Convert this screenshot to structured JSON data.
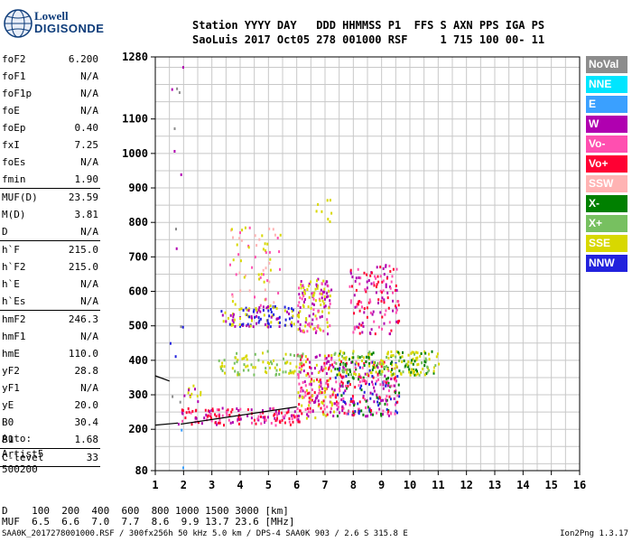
{
  "logo": {
    "line1": "Lowell",
    "line2": "DIGISONDE"
  },
  "header": {
    "labels_line": "Station YYYY DAY   DDD HHMMSS P1  FFS S AXN PPS IGA PS",
    "values_line": "SaoLuis 2017 Oct05 278 001000 RSF     1 715 100 00- 11"
  },
  "params": [
    {
      "k": "foF2",
      "v": "6.200"
    },
    {
      "k": "foF1",
      "v": "N/A"
    },
    {
      "k": "foF1p",
      "v": "N/A"
    },
    {
      "k": "foE",
      "v": "N/A"
    },
    {
      "k": "foEp",
      "v": "0.40"
    },
    {
      "k": "fxI",
      "v": "7.25"
    },
    {
      "k": "foEs",
      "v": "N/A"
    },
    {
      "k": "fmin",
      "v": "1.90"
    },
    {
      "sep": true
    },
    {
      "k": "MUF(D)",
      "v": "23.59"
    },
    {
      "k": "M(D)",
      "v": "3.81"
    },
    {
      "k": "D",
      "v": "N/A"
    },
    {
      "sep": true
    },
    {
      "k": "h`F",
      "v": "215.0"
    },
    {
      "k": "h`F2",
      "v": "215.0"
    },
    {
      "k": "h`E",
      "v": "N/A"
    },
    {
      "k": "h`Es",
      "v": "N/A"
    },
    {
      "sep": true
    },
    {
      "k": "hmF2",
      "v": "246.3"
    },
    {
      "k": "hmF1",
      "v": "N/A"
    },
    {
      "k": "hmE",
      "v": "110.0"
    },
    {
      "k": "yF2",
      "v": "28.8"
    },
    {
      "k": "yF1",
      "v": "N/A"
    },
    {
      "k": "yE",
      "v": "20.0"
    },
    {
      "k": "B0",
      "v": "30.4"
    },
    {
      "k": "B1",
      "v": "1.68"
    },
    {
      "sep": true
    },
    {
      "k": "C-level",
      "v": "33"
    },
    {
      "sep": true
    }
  ],
  "auto": {
    "l1": "Auto:",
    "l2": "Artist5",
    "l3": "500200"
  },
  "legend": [
    {
      "label": "NoVal",
      "color": "#8c8c8c"
    },
    {
      "label": "NNE",
      "color": "#00e5ff"
    },
    {
      "label": "E",
      "color": "#3aa0ff"
    },
    {
      "label": "W",
      "color": "#b000b0"
    },
    {
      "label": "Vo-",
      "color": "#ff4fb0"
    },
    {
      "label": "Vo+",
      "color": "#ff0033"
    },
    {
      "label": "SSW",
      "color": "#ffb3b3"
    },
    {
      "label": "X-",
      "color": "#008000"
    },
    {
      "label": "X+",
      "color": "#77c060"
    },
    {
      "label": "SSE",
      "color": "#d8d800"
    },
    {
      "label": "NNW",
      "color": "#2222dd"
    }
  ],
  "d_line": "D    100  200  400  600  800 1000 1500 3000 [km]",
  "muf_line": "MUF  6.5  6.6  7.0  7.7  8.6  9.9 13.7 23.6 [MHz]",
  "footer": {
    "left": "SAA0K_2017278001000.RSF / 300fx256h 50 kHz 5.0 km / DPS-4 SAA0K 903 / 2.6 S 315.8 E",
    "right": "Ion2Png 1.3.17"
  },
  "chart_data": {
    "type": "scatter",
    "title": "",
    "xlabel": "",
    "ylabel": "",
    "xlim": [
      1,
      16
    ],
    "ylim": [
      80,
      1280
    ],
    "x_ticks": [
      1,
      2,
      3,
      4,
      5,
      6,
      7,
      8,
      9,
      10,
      11,
      12,
      13,
      14,
      15,
      16
    ],
    "y_ticks": [
      80,
      200,
      300,
      400,
      500,
      600,
      700,
      800,
      900,
      1000,
      1100,
      1280
    ],
    "grid": true,
    "clusters": [
      {
        "x": [
          1.5,
          2.2
        ],
        "y": [
          85,
          95
        ],
        "density": "low",
        "colors": [
          "#2222dd",
          "#3aa0ff",
          "#00e5ff"
        ]
      },
      {
        "x": [
          1.6,
          1.9
        ],
        "y": [
          195,
          215
        ],
        "density": "low",
        "colors": [
          "#2222dd",
          "#3aa0ff"
        ]
      },
      {
        "x": [
          1.9,
          6.1
        ],
        "y": [
          215,
          265
        ],
        "density": "high",
        "colors": [
          "#ff0033",
          "#ff4fb0",
          "#b000b0",
          "#ff0033"
        ]
      },
      {
        "x": [
          6.0,
          7.3
        ],
        "y": [
          235,
          420
        ],
        "density": "high",
        "colors": [
          "#ff0033",
          "#ff4fb0",
          "#b000b0",
          "#d8d800"
        ]
      },
      {
        "x": [
          7.3,
          9.6
        ],
        "y": [
          240,
          400
        ],
        "density": "high",
        "colors": [
          "#ff4fb0",
          "#b000b0",
          "#2222dd",
          "#008000",
          "#ff0033"
        ]
      },
      {
        "x": [
          7.3,
          11.0
        ],
        "y": [
          360,
          430
        ],
        "density": "high",
        "colors": [
          "#d8d800",
          "#77c060",
          "#d8d800",
          "#008000"
        ]
      },
      {
        "x": [
          3.0,
          6.2
        ],
        "y": [
          360,
          430
        ],
        "density": "med",
        "colors": [
          "#d8d800",
          "#77c060"
        ]
      },
      {
        "x": [
          3.3,
          5.9
        ],
        "y": [
          500,
          560
        ],
        "density": "high",
        "colors": [
          "#b000b0",
          "#2222dd",
          "#d8d800"
        ]
      },
      {
        "x": [
          6.0,
          7.2
        ],
        "y": [
          480,
          640
        ],
        "density": "high",
        "colors": [
          "#b000b0",
          "#ff4fb0",
          "#d8d800"
        ]
      },
      {
        "x": [
          7.8,
          9.6
        ],
        "y": [
          480,
          680
        ],
        "density": "med",
        "colors": [
          "#b000b0",
          "#ff4fb0",
          "#ff0033"
        ]
      },
      {
        "x": [
          3.6,
          5.4
        ],
        "y": [
          560,
          790
        ],
        "density": "low",
        "colors": [
          "#d8d800",
          "#ffb3b3",
          "#ff4fb0"
        ]
      },
      {
        "x": [
          2.0,
          2.6
        ],
        "y": [
          280,
          340
        ],
        "density": "med",
        "colors": [
          "#b000b0",
          "#d8d800"
        ]
      },
      {
        "x": [
          1.5,
          2.0
        ],
        "y": [
          80,
          1280
        ],
        "density": "sparse",
        "colors": [
          "#b000b0",
          "#2222dd",
          "#8c8c8c"
        ]
      },
      {
        "x": [
          6.5,
          7.2
        ],
        "y": [
          800,
          870
        ],
        "density": "low",
        "colors": [
          "#d8d800"
        ]
      }
    ],
    "trace_lines": [
      {
        "points": [
          [
            1.9,
            215
          ],
          [
            6.0,
            265
          ]
        ],
        "color": "#000000"
      },
      {
        "points": [
          [
            1.0,
            212
          ],
          [
            1.8,
            218
          ]
        ],
        "color": "#000000"
      },
      {
        "points": [
          [
            1.0,
            355
          ],
          [
            1.5,
            340
          ]
        ],
        "color": "#000000"
      }
    ]
  }
}
